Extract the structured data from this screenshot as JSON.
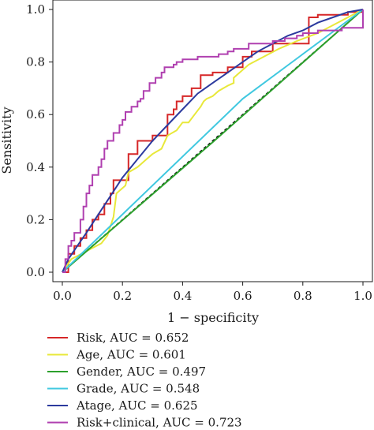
{
  "chart_data": {
    "type": "line",
    "xlabel": "1 − specificity",
    "ylabel": "Sensitivity",
    "xlim": [
      0,
      1
    ],
    "ylim": [
      0,
      1
    ],
    "xticks": [
      "0.0",
      "0.2",
      "0.4",
      "0.6",
      "0.8",
      "1.0"
    ],
    "yticks": [
      "0.0",
      "0.2",
      "0.4",
      "0.6",
      "0.8",
      "1.0"
    ],
    "reference_line": {
      "x": [
        0,
        1
      ],
      "y": [
        0,
        1
      ],
      "style": "dashed",
      "color": "#000000"
    },
    "legend_position": "bottom-left",
    "series": [
      {
        "name": "Risk, AUC = 0.652",
        "color": "#d62728",
        "step": true,
        "x": [
          0,
          0.01,
          0.02,
          0.02,
          0.04,
          0.04,
          0.06,
          0.06,
          0.08,
          0.08,
          0.1,
          0.1,
          0.12,
          0.12,
          0.14,
          0.14,
          0.16,
          0.16,
          0.17,
          0.17,
          0.22,
          0.22,
          0.25,
          0.25,
          0.3,
          0.3,
          0.35,
          0.35,
          0.37,
          0.37,
          0.38,
          0.38,
          0.4,
          0.4,
          0.43,
          0.43,
          0.46,
          0.46,
          0.5,
          0.5,
          0.55,
          0.55,
          0.6,
          0.6,
          0.63,
          0.63,
          0.7,
          0.7,
          0.82,
          0.82,
          0.85,
          0.85,
          0.9,
          0.9,
          0.95,
          0.95,
          1.0,
          1.0
        ],
        "y": [
          0,
          0,
          0,
          0.07,
          0.07,
          0.1,
          0.1,
          0.13,
          0.13,
          0.16,
          0.16,
          0.2,
          0.2,
          0.22,
          0.22,
          0.26,
          0.26,
          0.3,
          0.3,
          0.35,
          0.35,
          0.45,
          0.45,
          0.5,
          0.5,
          0.52,
          0.52,
          0.6,
          0.6,
          0.62,
          0.62,
          0.65,
          0.65,
          0.67,
          0.67,
          0.7,
          0.7,
          0.75,
          0.75,
          0.76,
          0.76,
          0.78,
          0.78,
          0.82,
          0.82,
          0.84,
          0.84,
          0.87,
          0.87,
          0.97,
          0.97,
          0.98,
          0.98,
          0.98,
          0.98,
          0.99,
          0.99,
          1.0
        ]
      },
      {
        "name": "Age, AUC = 0.601",
        "color": "#e8e83a",
        "step": false,
        "x": [
          0,
          0.03,
          0.08,
          0.13,
          0.15,
          0.17,
          0.18,
          0.21,
          0.22,
          0.25,
          0.26,
          0.28,
          0.3,
          0.33,
          0.35,
          0.38,
          0.4,
          0.42,
          0.44,
          0.46,
          0.47,
          0.48,
          0.5,
          0.52,
          0.55,
          0.57,
          0.57,
          0.59,
          0.62,
          0.67,
          0.72,
          0.78,
          0.85,
          0.9,
          0.95,
          1.0
        ],
        "y": [
          0,
          0.05,
          0.08,
          0.11,
          0.14,
          0.21,
          0.3,
          0.33,
          0.38,
          0.4,
          0.41,
          0.43,
          0.45,
          0.47,
          0.52,
          0.54,
          0.57,
          0.57,
          0.6,
          0.63,
          0.65,
          0.66,
          0.67,
          0.69,
          0.71,
          0.72,
          0.74,
          0.76,
          0.79,
          0.82,
          0.85,
          0.88,
          0.91,
          0.94,
          0.97,
          1.0
        ]
      },
      {
        "name": "Gender, AUC = 0.497",
        "color": "#2ca02c",
        "step": false,
        "x": [
          0,
          0.5,
          1.0
        ],
        "y": [
          0,
          0.495,
          1.0
        ]
      },
      {
        "name": "Grade, AUC = 0.548",
        "color": "#40c8e0",
        "step": false,
        "x": [
          0,
          0.6,
          1.0
        ],
        "y": [
          0,
          0.66,
          1.0
        ]
      },
      {
        "name": "Atage, AUC = 0.625",
        "color": "#2c3a9e",
        "step": false,
        "x": [
          0,
          0.02,
          0.05,
          0.08,
          0.12,
          0.16,
          0.2,
          0.25,
          0.3,
          0.35,
          0.4,
          0.45,
          0.5,
          0.55,
          0.6,
          0.65,
          0.7,
          0.75,
          0.8,
          0.85,
          0.9,
          0.95,
          1.0
        ],
        "y": [
          0,
          0.05,
          0.1,
          0.15,
          0.22,
          0.29,
          0.36,
          0.43,
          0.5,
          0.56,
          0.62,
          0.68,
          0.72,
          0.76,
          0.8,
          0.84,
          0.87,
          0.9,
          0.92,
          0.95,
          0.97,
          0.99,
          1.0
        ]
      },
      {
        "name": "Risk+clinical, AUC = 0.723",
        "color": "#b040b0",
        "step": true,
        "x": [
          0,
          0.01,
          0.01,
          0.02,
          0.02,
          0.03,
          0.03,
          0.04,
          0.04,
          0.06,
          0.06,
          0.07,
          0.07,
          0.08,
          0.08,
          0.09,
          0.09,
          0.1,
          0.1,
          0.12,
          0.12,
          0.13,
          0.13,
          0.14,
          0.14,
          0.15,
          0.15,
          0.17,
          0.17,
          0.19,
          0.19,
          0.2,
          0.2,
          0.21,
          0.21,
          0.23,
          0.23,
          0.25,
          0.25,
          0.26,
          0.26,
          0.27,
          0.27,
          0.29,
          0.29,
          0.31,
          0.31,
          0.33,
          0.33,
          0.34,
          0.34,
          0.37,
          0.37,
          0.38,
          0.38,
          0.4,
          0.4,
          0.45,
          0.45,
          0.52,
          0.52,
          0.55,
          0.55,
          0.57,
          0.57,
          0.62,
          0.62,
          0.7,
          0.7,
          0.74,
          0.74,
          0.78,
          0.78,
          0.8,
          0.8,
          0.85,
          0.85,
          0.93,
          0.93,
          1.0,
          1.0
        ],
        "y": [
          0,
          0,
          0.05,
          0.05,
          0.1,
          0.1,
          0.12,
          0.12,
          0.15,
          0.15,
          0.2,
          0.2,
          0.25,
          0.25,
          0.3,
          0.3,
          0.33,
          0.33,
          0.37,
          0.37,
          0.4,
          0.4,
          0.43,
          0.43,
          0.47,
          0.47,
          0.5,
          0.5,
          0.53,
          0.53,
          0.56,
          0.56,
          0.58,
          0.58,
          0.61,
          0.61,
          0.63,
          0.63,
          0.65,
          0.65,
          0.66,
          0.66,
          0.69,
          0.69,
          0.72,
          0.72,
          0.74,
          0.74,
          0.76,
          0.76,
          0.78,
          0.78,
          0.79,
          0.79,
          0.8,
          0.8,
          0.81,
          0.81,
          0.82,
          0.82,
          0.83,
          0.83,
          0.84,
          0.84,
          0.85,
          0.85,
          0.87,
          0.87,
          0.88,
          0.88,
          0.89,
          0.89,
          0.9,
          0.9,
          0.91,
          0.91,
          0.92,
          0.92,
          0.93,
          0.93,
          1.0
        ]
      }
    ]
  }
}
